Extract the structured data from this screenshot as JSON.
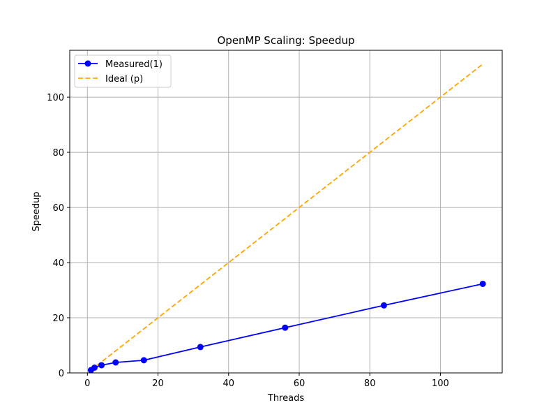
{
  "chart_data": {
    "type": "line",
    "title": "OpenMP Scaling: Speedup",
    "xlabel": "Threads",
    "ylabel": "Speedup",
    "xlim": [
      -5,
      117.5
    ],
    "ylim": [
      0,
      117
    ],
    "xticks": [
      0,
      20,
      40,
      60,
      80,
      100
    ],
    "yticks": [
      0,
      20,
      40,
      60,
      80,
      100
    ],
    "grid": true,
    "legend_position": "top-left",
    "series": [
      {
        "name": "Measured(1)",
        "style": "solid-with-markers",
        "color": "#0000ff",
        "x": [
          1,
          2,
          4,
          8,
          16,
          32,
          56,
          84,
          112
        ],
        "y": [
          1.0,
          1.9,
          2.8,
          3.8,
          4.6,
          9.4,
          16.4,
          24.5,
          32.3
        ]
      },
      {
        "name": "Ideal (p)",
        "style": "dashed",
        "color": "#ffa500",
        "x": [
          1,
          112
        ],
        "y": [
          1,
          112
        ]
      }
    ]
  }
}
